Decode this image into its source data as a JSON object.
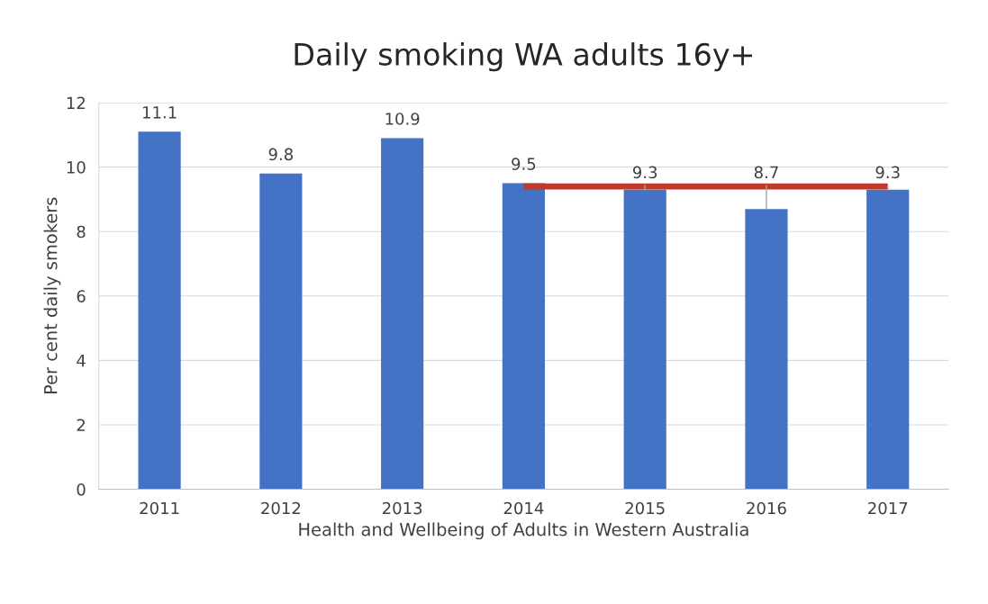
{
  "chart_data": {
    "type": "bar",
    "title": "Daily smoking WA adults 16y+",
    "xlabel": "Health and Wellbeing of Adults in Western Australia",
    "ylabel": "Per cent daily smokers",
    "categories": [
      "2011",
      "2012",
      "2013",
      "2014",
      "2015",
      "2016",
      "2017"
    ],
    "series": [
      {
        "color": "#4472c4",
        "values": [
          11.1,
          9.8,
          10.9,
          9.5,
          9.3,
          8.7,
          9.3
        ],
        "value_labels": [
          "11.1",
          "9.8",
          "10.9",
          "9.5",
          "9.3",
          "8.7",
          "9.3"
        ]
      },
      {
        "type": "line",
        "color": "#c0392b",
        "values": [
          null,
          null,
          null,
          9.4,
          9.4,
          9.4,
          9.4
        ]
      }
    ],
    "ylim": [
      0,
      12
    ],
    "yticks": [
      0,
      2,
      4,
      6,
      8,
      10,
      12
    ],
    "grid": "y",
    "legend": false
  }
}
